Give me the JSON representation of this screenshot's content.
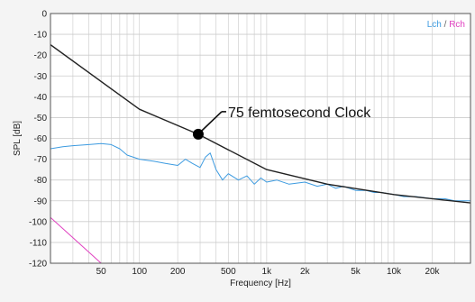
{
  "chart_data": {
    "type": "line",
    "xlabel": "Frequency [Hz]",
    "ylabel": "SPL [dB]",
    "x_scale": "log",
    "xlim": [
      20,
      40000
    ],
    "ylim": [
      -120,
      0
    ],
    "grid": true,
    "x_ticks": [
      {
        "value": 50,
        "label": "50"
      },
      {
        "value": 100,
        "label": "100"
      },
      {
        "value": 200,
        "label": "200"
      },
      {
        "value": 500,
        "label": "500"
      },
      {
        "value": 1000,
        "label": "1k"
      },
      {
        "value": 2000,
        "label": "2k"
      },
      {
        "value": 5000,
        "label": "5k"
      },
      {
        "value": 10000,
        "label": "10k"
      },
      {
        "value": 20000,
        "label": "20k"
      }
    ],
    "y_ticks": [
      0,
      -10,
      -20,
      -30,
      -40,
      -50,
      -60,
      -70,
      -80,
      -90,
      -100,
      -110,
      -120
    ],
    "legend": {
      "position": "top-right",
      "items": [
        {
          "label": "Lch",
          "color": "#3d9be0"
        },
        {
          "label": "Rch",
          "color": "#e040c0"
        }
      ],
      "separator": " / "
    },
    "annotation": {
      "text": "75 femtosecond Clock",
      "point": {
        "x": 290,
        "y": -58
      }
    },
    "series": [
      {
        "role": "clock-jitter-line",
        "color": "#222222",
        "points": [
          [
            20,
            -15
          ],
          [
            100,
            -46
          ],
          [
            290,
            -58
          ],
          [
            1000,
            -75
          ],
          [
            3000,
            -82
          ],
          [
            10000,
            -87
          ],
          [
            40000,
            -91
          ]
        ]
      },
      {
        "role": "lch",
        "color": "#3d9be0",
        "points": [
          [
            20,
            -65
          ],
          [
            25,
            -64
          ],
          [
            30,
            -63.5
          ],
          [
            40,
            -63
          ],
          [
            50,
            -62.5
          ],
          [
            60,
            -63
          ],
          [
            70,
            -65
          ],
          [
            80,
            -68
          ],
          [
            100,
            -70
          ],
          [
            130,
            -71
          ],
          [
            160,
            -72
          ],
          [
            200,
            -73
          ],
          [
            230,
            -70
          ],
          [
            260,
            -72
          ],
          [
            300,
            -74
          ],
          [
            330,
            -69
          ],
          [
            360,
            -67
          ],
          [
            400,
            -75
          ],
          [
            450,
            -80
          ],
          [
            500,
            -77
          ],
          [
            600,
            -80
          ],
          [
            700,
            -78
          ],
          [
            800,
            -82
          ],
          [
            900,
            -79
          ],
          [
            1000,
            -81
          ],
          [
            1200,
            -80
          ],
          [
            1500,
            -82
          ],
          [
            2000,
            -81
          ],
          [
            2500,
            -83
          ],
          [
            3000,
            -82
          ],
          [
            3500,
            -84
          ],
          [
            4000,
            -83
          ],
          [
            5000,
            -85
          ],
          [
            6000,
            -85
          ],
          [
            7000,
            -86
          ],
          [
            8000,
            -86
          ],
          [
            10000,
            -87
          ],
          [
            12000,
            -88
          ],
          [
            15000,
            -88
          ],
          [
            20000,
            -89
          ],
          [
            25000,
            -89
          ],
          [
            30000,
            -90
          ],
          [
            40000,
            -90
          ]
        ]
      },
      {
        "role": "rch",
        "color": "#e040c0",
        "points": [
          [
            20,
            -98
          ],
          [
            50,
            -120
          ]
        ]
      }
    ]
  }
}
